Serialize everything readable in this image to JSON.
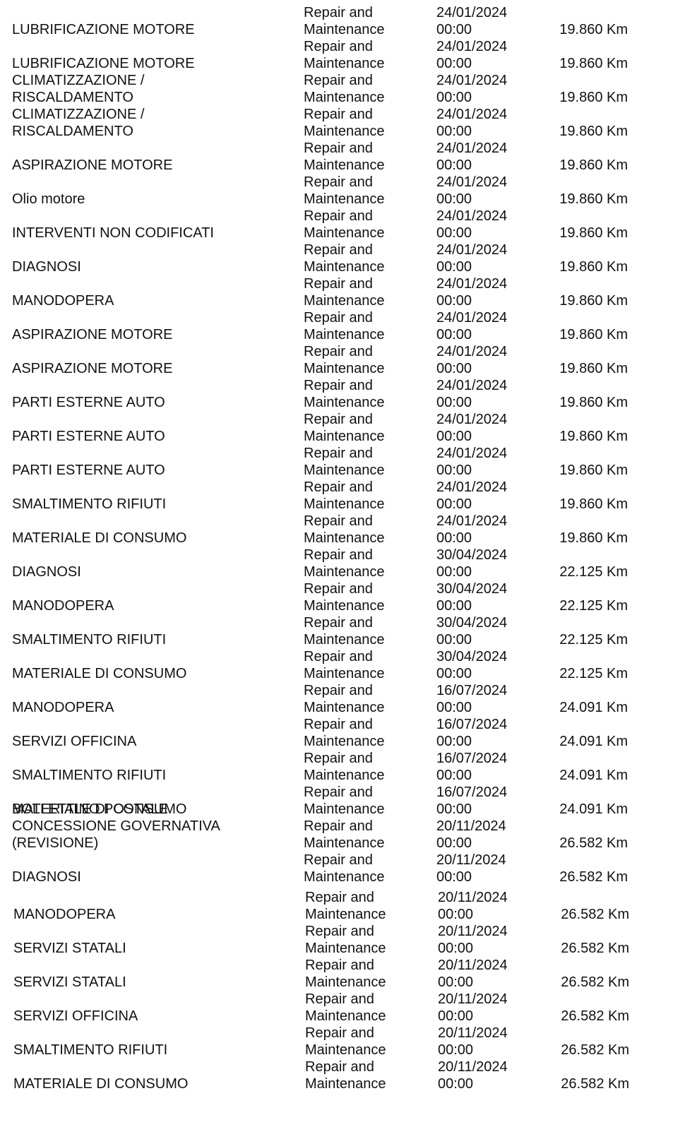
{
  "table": {
    "rows": [
      [
        "LUBRIFICAZIONE MOTORE",
        "Repair and Maintenance",
        "24/01/2024 00:00",
        "19.860 Km"
      ],
      [
        "LUBRIFICAZIONE MOTORE",
        "Repair and Maintenance",
        "24/01/2024 00:00",
        "19.860 Km"
      ],
      [
        "CLIMATIZZAZIONE / RISCALDAMENTO",
        "Repair and Maintenance",
        "24/01/2024 00:00",
        "19.860 Km"
      ],
      [
        "CLIMATIZZAZIONE / RISCALDAMENTO",
        "Repair and Maintenance",
        "24/01/2024 00:00",
        "19.860 Km"
      ],
      [
        "ASPIRAZIONE MOTORE",
        "Repair and Maintenance",
        "24/01/2024 00:00",
        "19.860 Km"
      ],
      [
        "Olio motore",
        "Repair and Maintenance",
        "24/01/2024 00:00",
        "19.860 Km"
      ],
      [
        "INTERVENTI NON CODIFICATI",
        "Repair and Maintenance",
        "24/01/2024 00:00",
        "19.860 Km"
      ],
      [
        "DIAGNOSI",
        "Repair and Maintenance",
        "24/01/2024 00:00",
        "19.860 Km"
      ],
      [
        "MANODOPERA",
        "Repair and Maintenance",
        "24/01/2024 00:00",
        "19.860 Km"
      ],
      [
        "ASPIRAZIONE MOTORE",
        "Repair and Maintenance",
        "24/01/2024 00:00",
        "19.860 Km"
      ],
      [
        "ASPIRAZIONE MOTORE",
        "Repair and Maintenance",
        "24/01/2024 00:00",
        "19.860 Km"
      ],
      [
        "PARTI ESTERNE AUTO",
        "Repair and Maintenance",
        "24/01/2024 00:00",
        "19.860 Km"
      ],
      [
        "PARTI ESTERNE AUTO",
        "Repair and Maintenance",
        "24/01/2024 00:00",
        "19.860 Km"
      ],
      [
        "PARTI ESTERNE AUTO",
        "Repair and Maintenance",
        "24/01/2024 00:00",
        "19.860 Km"
      ],
      [
        "SMALTIMENTO RIFIUTI",
        "Repair and Maintenance",
        "24/01/2024 00:00",
        "19.860 Km"
      ],
      [
        "MATERIALE DI CONSUMO",
        "Repair and Maintenance",
        "24/01/2024 00:00",
        "19.860 Km"
      ],
      [
        "DIAGNOSI",
        "Repair and Maintenance",
        "30/04/2024 00:00",
        "22.125 Km"
      ],
      [
        "MANODOPERA",
        "Repair and Maintenance",
        "30/04/2024 00:00",
        "22.125 Km"
      ],
      [
        "SMALTIMENTO RIFIUTI",
        "Repair and Maintenance",
        "30/04/2024 00:00",
        "22.125 Km"
      ],
      [
        "MATERIALE DI CONSUMO",
        "Repair and Maintenance",
        "30/04/2024 00:00",
        "22.125 Km"
      ],
      [
        "MANODOPERA",
        "Repair and Maintenance",
        "16/07/2024 00:00",
        "24.091 Km"
      ],
      [
        "SERVIZI OFFICINA",
        "Repair and Maintenance",
        "16/07/2024 00:00",
        "24.091 Km"
      ],
      [
        "SMALTIMENTO RIFIUTI",
        "Repair and Maintenance",
        "16/07/2024 00:00",
        "24.091 Km"
      ],
      [
        "MATERIALE DI CONSUMO",
        "Repair and Maintenance",
        "16/07/2024 00:00",
        "24.091 Km"
      ],
      [
        "BOLLETTINO POSTALE CONCESSIONE GOVERNATIVA (REVISIONE)",
        "Repair and Maintenance",
        "20/11/2024 00:00",
        "26.582 Km"
      ],
      [
        "DIAGNOSI",
        "Repair and Maintenance",
        "20/11/2024 00:00",
        "26.582 Km"
      ],
      [
        "MANODOPERA",
        "Repair and Maintenance",
        "20/11/2024 00:00",
        "26.582 Km"
      ],
      [
        "SERVIZI STATALI",
        "Repair and Maintenance",
        "20/11/2024 00:00",
        "26.582 Km"
      ],
      [
        "SERVIZI STATALI",
        "Repair and Maintenance",
        "20/11/2024 00:00",
        "26.582 Km"
      ],
      [
        "SERVIZI OFFICINA",
        "Repair and Maintenance",
        "20/11/2024 00:00",
        "26.582 Km"
      ],
      [
        "SMALTIMENTO RIFIUTI",
        "Repair and Maintenance",
        "20/11/2024 00:00",
        "26.582 Km"
      ],
      [
        "MATERIALE DI CONSUMO",
        "Repair and Maintenance",
        "20/11/2024 00:00",
        "26.582 Km"
      ]
    ]
  }
}
